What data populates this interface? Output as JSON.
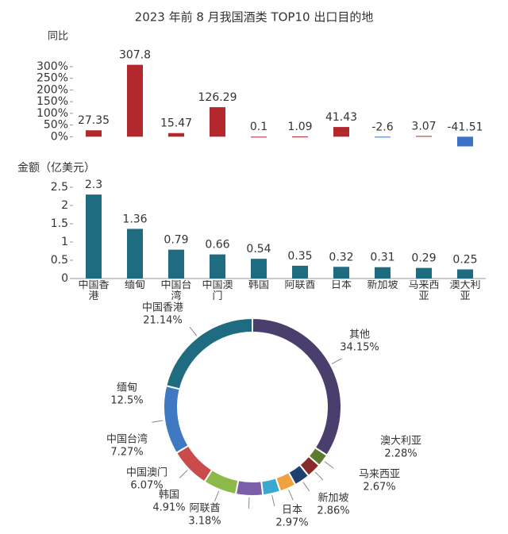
{
  "title": "2023 年前 8 月我国酒类 TOP10 出口目的地",
  "chart_data": [
    {
      "type": "bar",
      "y_label": "同比",
      "categories": [
        "中国香港",
        "缅甸",
        "中国台湾",
        "中国澳门",
        "韩国",
        "阿联酋",
        "日本",
        "新加坡",
        "马来西亚",
        "澳大利亚"
      ],
      "values": [
        27.35,
        307.8,
        15.47,
        126.29,
        0.1,
        1.09,
        41.43,
        -2.6,
        3.07,
        -41.51
      ],
      "color": "#b3282d",
      "negative_color": "#3b72c5",
      "ylim": [
        -50,
        310
      ],
      "yticks": [
        {
          "value": 0,
          "label": "0%"
        },
        {
          "value": 50,
          "label": "50%"
        },
        {
          "value": 100,
          "label": "100%"
        },
        {
          "value": 150,
          "label": "150%"
        },
        {
          "value": 200,
          "label": "200%"
        },
        {
          "value": 250,
          "label": "250%"
        },
        {
          "value": 300,
          "label": "300%"
        }
      ]
    },
    {
      "type": "bar",
      "y_label": "金额（亿美元）",
      "categories": [
        "中国香港",
        "缅甸",
        "中国台湾",
        "中国澳门",
        "韩国",
        "阿联酋",
        "日本",
        "新加坡",
        "马来西亚",
        "澳大利亚"
      ],
      "values": [
        2.3,
        1.36,
        0.79,
        0.66,
        0.54,
        0.35,
        0.32,
        0.31,
        0.29,
        0.25
      ],
      "color": "#1f6b80",
      "ylim": [
        0,
        2.5
      ],
      "yticks": [
        0,
        0.5,
        1,
        1.5,
        2,
        2.5
      ]
    },
    {
      "type": "pie",
      "donut": true,
      "categories": [
        "其他",
        "澳大利亚",
        "马来西亚",
        "新加坡",
        "日本",
        "阿联酋",
        "韩国",
        "中国澳门",
        "中国台湾",
        "缅甸",
        "中国香港"
      ],
      "values": [
        34.15,
        2.28,
        2.67,
        2.86,
        2.97,
        3.18,
        4.91,
        6.07,
        7.27,
        12.5,
        21.14
      ],
      "value_labels": [
        "34.15%",
        "2.28%",
        "2.67%",
        "2.86%",
        "2.97%",
        "3.18%",
        "4.91%",
        "6.07%",
        "7.27%",
        "12.5%",
        "21.14%"
      ],
      "colors": [
        "#4a3e6c",
        "#5b7b2f",
        "#8a2b2b",
        "#1f406f",
        "#f2a13f",
        "#3aa9d1",
        "#7c5fa9",
        "#8bba4b",
        "#c94b4b",
        "#3f79c1",
        "#1f6b80"
      ]
    }
  ]
}
